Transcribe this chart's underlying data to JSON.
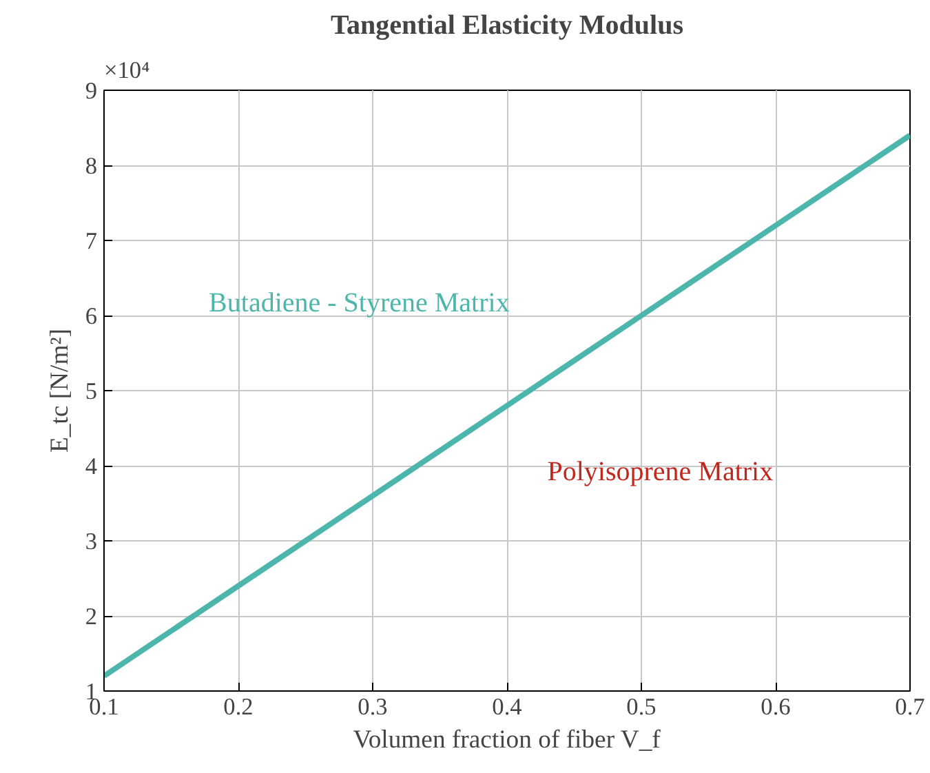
{
  "chart_data": {
    "type": "line",
    "title": "Tangential Elasticity Modulus",
    "xlabel": "Volumen fraction of fiber V_f",
    "ylabel": "E_tc [N/m²]",
    "x": [
      0.1,
      0.2,
      0.3,
      0.4,
      0.5,
      0.6,
      0.7
    ],
    "series": [
      {
        "name": "Polyisoprene Matrix",
        "color": "#c0281e",
        "values": [
          null,
          null,
          null,
          null,
          null,
          null,
          null
        ]
      },
      {
        "name": "Butadiene - Styrene Matrix",
        "color": "#4db6ac",
        "values": [
          1.2,
          2.4,
          3.6,
          4.8,
          6.0,
          7.2,
          8.4
        ]
      }
    ],
    "xlim": [
      0.1,
      0.7
    ],
    "xticks": [
      0.1,
      0.2,
      0.3,
      0.4,
      0.5,
      0.6,
      0.7
    ],
    "ylim": [
      1,
      9
    ],
    "yticks": [
      1,
      2,
      3,
      4,
      5,
      6,
      7,
      8,
      9
    ],
    "annotations": [
      "×10⁴"
    ],
    "grid": true,
    "marker": "none",
    "line_style": "solid"
  }
}
